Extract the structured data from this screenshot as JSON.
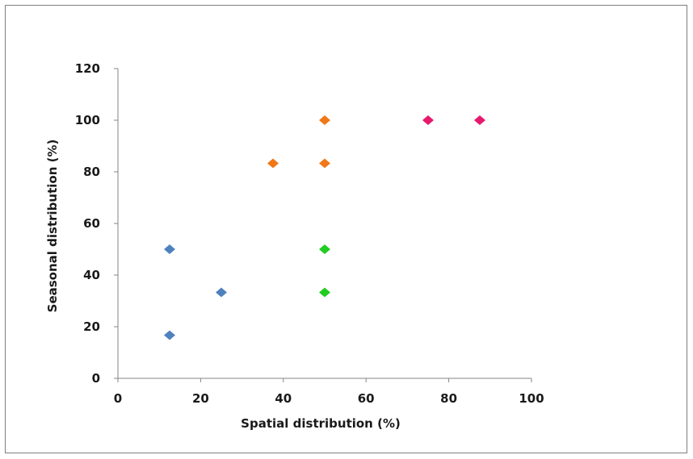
{
  "chart_data": {
    "type": "scatter",
    "xlabel": "Spatial distribution (%)",
    "ylabel": "Seasonal distribution (%)",
    "xlim": [
      0,
      100
    ],
    "ylim": [
      0,
      120
    ],
    "x_ticks": [
      "0",
      "20",
      "40",
      "60",
      "80",
      "100"
    ],
    "y_ticks": [
      "0",
      "20",
      "40",
      "60",
      "80",
      "100",
      "120"
    ],
    "grid": false,
    "legend": "none",
    "marker": "diamond",
    "series": [
      {
        "color": "#4f81bd",
        "points": [
          [
            12.5,
            50
          ],
          [
            25,
            33.3
          ],
          [
            12.5,
            16.7
          ]
        ]
      },
      {
        "color": "#f07818",
        "points": [
          [
            37.5,
            83.3
          ],
          [
            50,
            83.3
          ],
          [
            50,
            100
          ]
        ]
      },
      {
        "color": "#22cc22",
        "points": [
          [
            50,
            50
          ],
          [
            50,
            33.3
          ]
        ]
      },
      {
        "color": "#e8186e",
        "points": [
          [
            75,
            100
          ],
          [
            87.5,
            100
          ]
        ]
      }
    ]
  }
}
